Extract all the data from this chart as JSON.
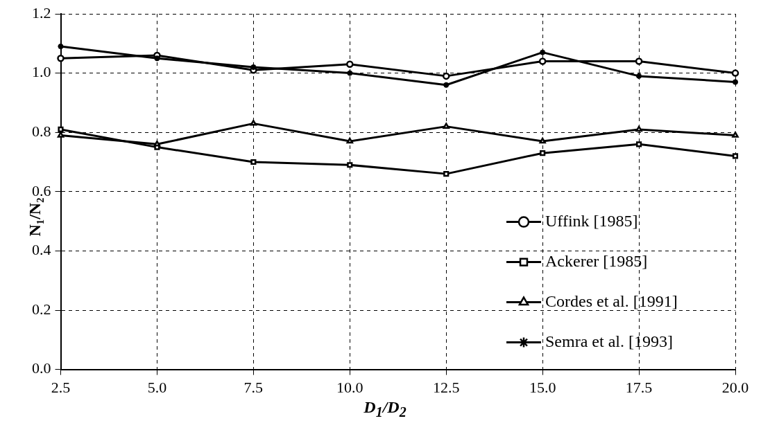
{
  "chart_data": {
    "type": "line",
    "xlabel": "D$_{1}$/D$_{2}$",
    "ylabel": "N₁/N₂",
    "x": [
      2.5,
      5.0,
      7.5,
      10.0,
      12.5,
      15.0,
      17.5,
      20.0
    ],
    "xlim": [
      2.5,
      20.0
    ],
    "xticks": [
      {
        "value": 2.5,
        "label": "2.5"
      },
      {
        "value": 5,
        "label": "5.0"
      },
      {
        "value": 7.5,
        "label": "7.5"
      },
      {
        "value": 10,
        "label": "10.0"
      },
      {
        "value": 12.5,
        "label": "12.5"
      },
      {
        "value": 15,
        "label": "15.0"
      },
      {
        "value": 17.5,
        "label": "17.5"
      },
      {
        "value": 20,
        "label": "20.0"
      }
    ],
    "ylim": [
      0,
      1.2
    ],
    "yticks": [
      {
        "value": 0,
        "label": "0.0"
      },
      {
        "value": 0.2,
        "label": "0.2"
      },
      {
        "value": 0.4,
        "label": "0.4"
      },
      {
        "value": 0.6,
        "label": "0.6"
      },
      {
        "value": 0.8,
        "label": "0.8"
      },
      {
        "value": 1,
        "label": "1.0"
      },
      {
        "value": 1.2,
        "label": "1.2"
      }
    ],
    "grid": true,
    "legend": "bottom right",
    "line_style": "solid",
    "series": [
      {
        "name": "Uffink [1985]",
        "color": "#000000",
        "marker": "circle",
        "values": [
          1.05,
          1.06,
          1.01,
          1.03,
          0.99,
          1.04,
          1.04,
          1.0
        ]
      },
      {
        "name": "Ackerer [1985]",
        "color": "#000000",
        "marker": "square",
        "values": [
          0.81,
          0.75,
          0.7,
          0.69,
          0.66,
          0.73,
          0.76,
          0.72
        ]
      },
      {
        "name": "Cordes et al. [1991]",
        "color": "#000000",
        "marker": "triangle",
        "values": [
          0.79,
          0.76,
          0.83,
          0.77,
          0.82,
          0.77,
          0.81,
          0.79
        ]
      },
      {
        "name": "Semra et al. [1993]",
        "color": "#000000",
        "marker": "cross",
        "values": [
          1.09,
          1.05,
          1.02,
          1.0,
          0.96,
          1.07,
          0.99,
          0.97
        ]
      }
    ]
  }
}
